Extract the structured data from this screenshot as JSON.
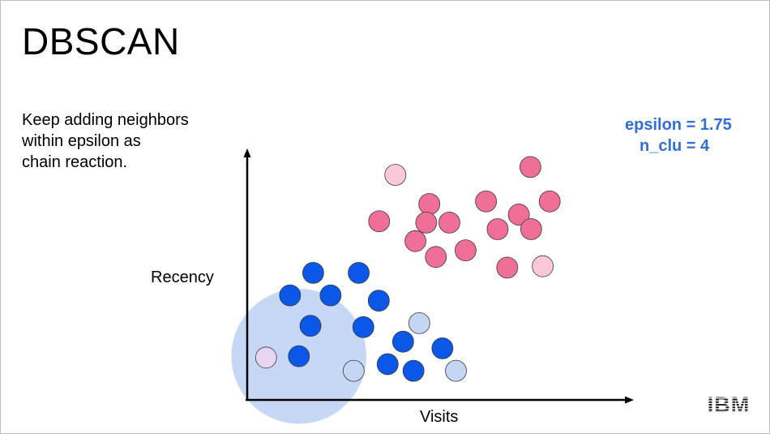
{
  "slide": {
    "title": "DBSCAN",
    "description_lines": [
      "Keep adding neighbors",
      "within epsilon as",
      "chain reaction."
    ],
    "params": {
      "epsilon": "epsilon = 1.75",
      "n_clu": "n_clu = 4"
    },
    "axis": {
      "x_label": "Visits",
      "y_label": "Recency"
    },
    "logo_text": "IBM"
  },
  "colors": {
    "pink_core": "#ef6f96",
    "pink_light": "#f9c9d7",
    "blue_core": "#0b57e8",
    "blue_light": "#c5d6f4",
    "noise_violet": "#e6d6f2",
    "epsilon_circle": "#c4d6f6",
    "param_text": "#2f6fd8"
  },
  "chart_data": {
    "type": "scatter",
    "xlabel": "Visits",
    "ylabel": "Recency",
    "series": [
      {
        "role": "pink core points",
        "color": "pink_core",
        "points": [
          [
            7.34,
            11.8
          ],
          [
            6.19,
            10.5
          ],
          [
            7.84,
            10.5
          ],
          [
            4.72,
            10.4
          ],
          [
            7.04,
            10.0
          ],
          [
            3.42,
            9.75
          ],
          [
            4.64,
            9.7
          ],
          [
            5.24,
            9.7
          ],
          [
            6.49,
            9.45
          ],
          [
            7.36,
            9.45
          ],
          [
            4.36,
            9.0
          ],
          [
            5.66,
            8.65
          ],
          [
            4.89,
            8.4
          ],
          [
            6.74,
            8.0
          ]
        ]
      },
      {
        "role": "pink border points",
        "color": "pink_light",
        "points": [
          [
            3.84,
            11.5
          ],
          [
            7.66,
            8.05
          ]
        ]
      },
      {
        "role": "blue core points",
        "color": "blue_core",
        "points": [
          [
            1.71,
            7.8
          ],
          [
            2.89,
            7.8
          ],
          [
            1.11,
            6.95
          ],
          [
            2.16,
            6.95
          ],
          [
            3.41,
            6.75
          ],
          [
            1.64,
            5.8
          ],
          [
            3.01,
            5.75
          ],
          [
            4.04,
            5.2
          ],
          [
            5.06,
            4.95
          ],
          [
            1.34,
            4.65
          ],
          [
            3.64,
            4.35
          ],
          [
            4.31,
            4.1
          ]
        ]
      },
      {
        "role": "blue border points",
        "color": "blue_light",
        "points": [
          [
            4.46,
            5.9
          ],
          [
            2.76,
            4.1
          ],
          [
            5.41,
            4.1
          ]
        ]
      },
      {
        "role": "noise point inside epsilon neighborhood",
        "color": "noise_violet",
        "points": [
          [
            0.49,
            4.6
          ]
        ]
      }
    ],
    "epsilon_neighborhood": {
      "center": [
        1.34,
        4.65
      ],
      "radius": 1.75
    },
    "xlim": [
      0,
      10
    ],
    "ylim": [
      3,
      12.5
    ],
    "grid": false,
    "ticks": false
  }
}
